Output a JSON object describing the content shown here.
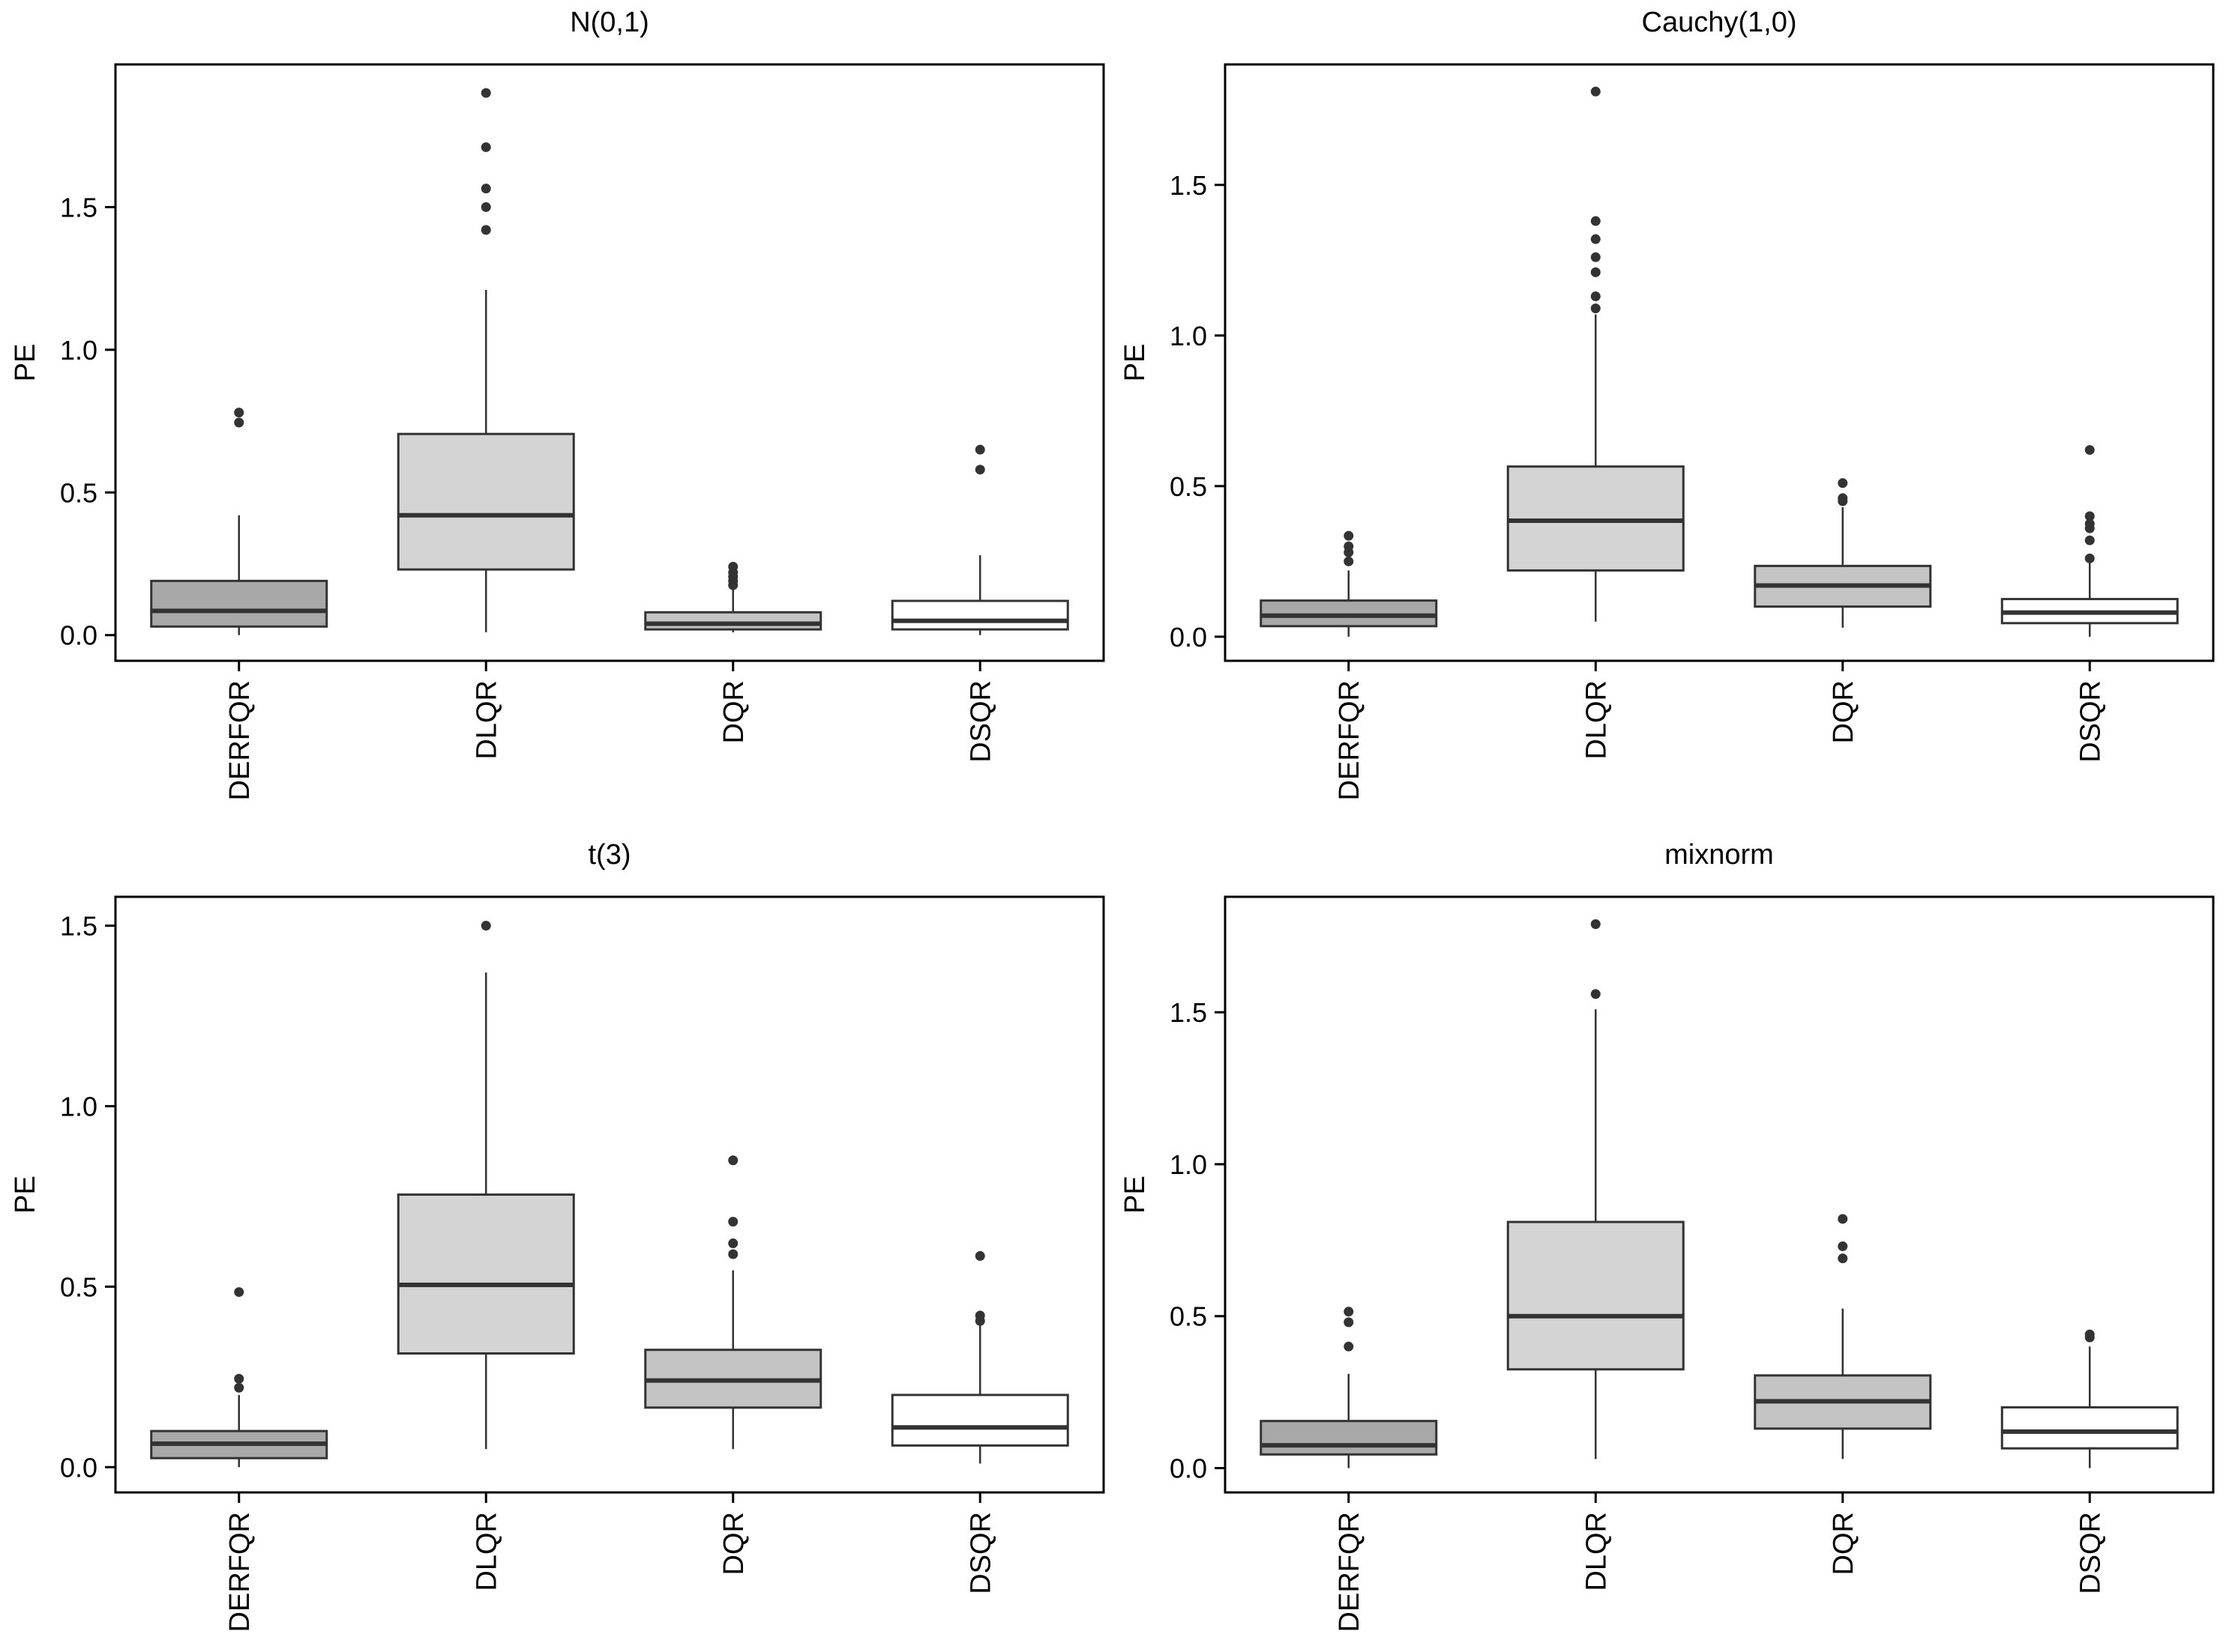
{
  "chart_data": [
    {
      "type": "boxplot",
      "title": "N(0,1)",
      "xlabel": "",
      "ylabel": "PE",
      "ylim": [
        -0.09,
        2.0
      ],
      "yticks": [
        0.0,
        0.5,
        1.0,
        1.5
      ],
      "ytick_labels": [
        "0.0",
        "0.5",
        "1.0",
        "1.5"
      ],
      "grid": false,
      "categories": [
        "DERFQR",
        "DLQR",
        "DQR",
        "DSQR"
      ],
      "fill_colors": [
        "#a8a8a8",
        "#d4d4d4",
        "#c4c4c4",
        "#ffffff"
      ],
      "boxes": [
        {
          "whisker_low": 0.0,
          "q1": 0.03,
          "median": 0.085,
          "q3": 0.19,
          "whisker_high": 0.42,
          "outliers": [
            0.745,
            0.78
          ]
        },
        {
          "whisker_low": 0.01,
          "q1": 0.23,
          "median": 0.42,
          "q3": 0.705,
          "whisker_high": 1.21,
          "outliers": [
            1.42,
            1.5,
            1.565,
            1.71,
            1.9
          ]
        },
        {
          "whisker_low": 0.01,
          "q1": 0.02,
          "median": 0.04,
          "q3": 0.08,
          "whisker_high": 0.16,
          "outliers": [
            0.175,
            0.19,
            0.205,
            0.22,
            0.24
          ]
        },
        {
          "whisker_low": 0.0,
          "q1": 0.02,
          "median": 0.05,
          "q3": 0.12,
          "whisker_high": 0.28,
          "outliers": [
            0.58,
            0.65
          ]
        }
      ]
    },
    {
      "type": "boxplot",
      "title": "Cauchy(1,0)",
      "xlabel": "",
      "ylabel": "PE",
      "ylim": [
        -0.08,
        1.9
      ],
      "yticks": [
        0.0,
        0.5,
        1.0,
        1.5
      ],
      "ytick_labels": [
        "0.0",
        "0.5",
        "1.0",
        "1.5"
      ],
      "grid": false,
      "categories": [
        "DERFQR",
        "DLQR",
        "DQR",
        "DSQR"
      ],
      "fill_colors": [
        "#a8a8a8",
        "#d4d4d4",
        "#c4c4c4",
        "#ffffff"
      ],
      "boxes": [
        {
          "whisker_low": 0.0,
          "q1": 0.035,
          "median": 0.07,
          "q3": 0.12,
          "whisker_high": 0.22,
          "outliers": [
            0.25,
            0.28,
            0.3,
            0.335
          ]
        },
        {
          "whisker_low": 0.05,
          "q1": 0.22,
          "median": 0.385,
          "q3": 0.565,
          "whisker_high": 1.07,
          "outliers": [
            1.09,
            1.13,
            1.21,
            1.26,
            1.32,
            1.38,
            1.81
          ]
        },
        {
          "whisker_low": 0.03,
          "q1": 0.1,
          "median": 0.17,
          "q3": 0.235,
          "whisker_high": 0.43,
          "outliers": [
            0.45,
            0.46,
            0.51
          ]
        },
        {
          "whisker_low": 0.0,
          "q1": 0.045,
          "median": 0.08,
          "q3": 0.125,
          "whisker_high": 0.25,
          "outliers": [
            0.26,
            0.32,
            0.36,
            0.375,
            0.4,
            0.62
          ]
        }
      ]
    },
    {
      "type": "boxplot",
      "title": "t(3)",
      "xlabel": "",
      "ylabel": "PE",
      "ylim": [
        -0.07,
        1.58
      ],
      "yticks": [
        0.0,
        0.5,
        1.0,
        1.5
      ],
      "ytick_labels": [
        "0.0",
        "0.5",
        "1.0",
        "1.5"
      ],
      "grid": false,
      "categories": [
        "DERFQR",
        "DLQR",
        "DQR",
        "DSQR"
      ],
      "fill_colors": [
        "#a8a8a8",
        "#d4d4d4",
        "#c4c4c4",
        "#ffffff"
      ],
      "boxes": [
        {
          "whisker_low": 0.0,
          "q1": 0.025,
          "median": 0.065,
          "q3": 0.1,
          "whisker_high": 0.2,
          "outliers": [
            0.22,
            0.245,
            0.485
          ]
        },
        {
          "whisker_low": 0.05,
          "q1": 0.315,
          "median": 0.505,
          "q3": 0.755,
          "whisker_high": 1.37,
          "outliers": [
            1.5
          ]
        },
        {
          "whisker_low": 0.05,
          "q1": 0.165,
          "median": 0.24,
          "q3": 0.325,
          "whisker_high": 0.545,
          "outliers": [
            0.59,
            0.62,
            0.68,
            0.85
          ]
        },
        {
          "whisker_low": 0.01,
          "q1": 0.06,
          "median": 0.11,
          "q3": 0.2,
          "whisker_high": 0.4,
          "outliers": [
            0.405,
            0.42,
            0.585
          ]
        }
      ]
    },
    {
      "type": "boxplot",
      "title": "mixnorm",
      "xlabel": "",
      "ylabel": "PE",
      "ylim": [
        -0.08,
        1.88
      ],
      "yticks": [
        0.0,
        0.5,
        1.0,
        1.5
      ],
      "ytick_labels": [
        "0.0",
        "0.5",
        "1.0",
        "1.5"
      ],
      "grid": false,
      "categories": [
        "DERFQR",
        "DLQR",
        "DQR",
        "DSQR"
      ],
      "fill_colors": [
        "#a8a8a8",
        "#d4d4d4",
        "#c4c4c4",
        "#ffffff"
      ],
      "boxes": [
        {
          "whisker_low": 0.0,
          "q1": 0.045,
          "median": 0.075,
          "q3": 0.155,
          "whisker_high": 0.31,
          "outliers": [
            0.4,
            0.48,
            0.515
          ]
        },
        {
          "whisker_low": 0.03,
          "q1": 0.325,
          "median": 0.5,
          "q3": 0.81,
          "whisker_high": 1.51,
          "outliers": [
            1.56,
            1.79
          ]
        },
        {
          "whisker_low": 0.03,
          "q1": 0.13,
          "median": 0.22,
          "q3": 0.305,
          "whisker_high": 0.525,
          "outliers": [
            0.69,
            0.73,
            0.82
          ]
        },
        {
          "whisker_low": 0.0,
          "q1": 0.065,
          "median": 0.12,
          "q3": 0.2,
          "whisker_high": 0.4,
          "outliers": [
            0.43,
            0.44
          ]
        }
      ]
    }
  ]
}
